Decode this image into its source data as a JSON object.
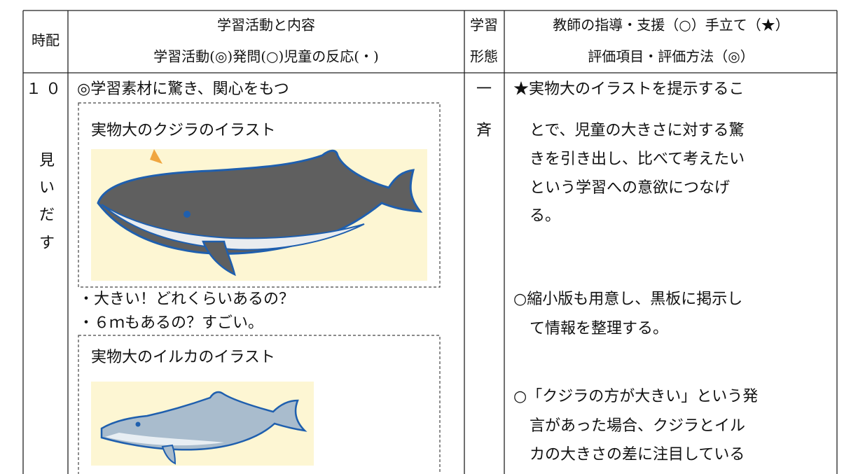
{
  "header": {
    "time": "時配",
    "activity": [
      "学習活動と内容",
      "学習活動(◎)発問(○)児童の反応(・)"
    ],
    "form": [
      "学習",
      "形態"
    ],
    "teacher": [
      "教師の指導・支援（○）手立て（★）",
      "評価項目・評価方法（◎）"
    ]
  },
  "row": {
    "time": "１０",
    "stage": [
      "見",
      "い",
      "だ",
      "す"
    ],
    "activity": {
      "heading": "◎学習素材に驚き、関心をもつ",
      "whale_box": "実物大のクジラのイラスト",
      "reactions": [
        "・大きい！どれくらいあるの？",
        "・６ｍもあるの？すごい。"
      ],
      "dolphin_box": "実物大のイルカのイラスト"
    },
    "form": [
      "一",
      "斉"
    ],
    "teacher": [
      [
        "★実物大のイラストを提示するこ",
        "とで、児童の大きさに対する驚",
        "きを引き出し、比べて考えたい",
        "という学習への意欲につなげ",
        "る。"
      ],
      [
        "○縮小版も用意し、黒板に掲示し",
        "て情報を整理する。"
      ],
      [
        "○「クジラの方が大きい」という発",
        "言があった場合、クジラとイル",
        "カの大きさの差に注目している"
      ]
    ]
  }
}
